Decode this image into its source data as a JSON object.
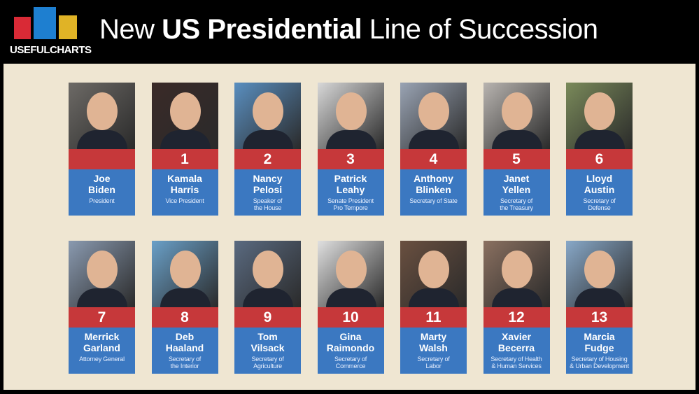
{
  "header": {
    "logo_text": "USEFULCHARTS",
    "logo_colors": [
      "#d92a36",
      "#1e7fd0",
      "#e0b326"
    ],
    "title_pre": "New ",
    "title_bold": "US Presidential",
    "title_post": " Line of Succession"
  },
  "colors": {
    "number_band": "#c6383a",
    "info_band": "#3b78c1",
    "background": "#efe6d2"
  },
  "people": [
    {
      "number": "",
      "first": "Joe",
      "last": "Biden",
      "role1": "President",
      "role2": ""
    },
    {
      "number": "1",
      "first": "Kamala",
      "last": "Harris",
      "role1": "Vice President",
      "role2": ""
    },
    {
      "number": "2",
      "first": "Nancy",
      "last": "Pelosi",
      "role1": "Speaker of",
      "role2": "the House"
    },
    {
      "number": "3",
      "first": "Patrick",
      "last": "Leahy",
      "role1": "Senate President",
      "role2": "Pro Tempore"
    },
    {
      "number": "4",
      "first": "Anthony",
      "last": "Blinken",
      "role1": "Secretary of State",
      "role2": ""
    },
    {
      "number": "5",
      "first": "Janet",
      "last": "Yellen",
      "role1": "Secretary of",
      "role2": "the Treasury"
    },
    {
      "number": "6",
      "first": "Lloyd",
      "last": "Austin",
      "role1": "Secretary of",
      "role2": "Defense"
    },
    {
      "number": "7",
      "first": "Merrick",
      "last": "Garland",
      "role1": "Attorney General",
      "role2": ""
    },
    {
      "number": "8",
      "first": "Deb",
      "last": "Haaland",
      "role1": "Secretary of",
      "role2": "the Interior"
    },
    {
      "number": "9",
      "first": "Tom",
      "last": "Vilsack",
      "role1": "Secretary of",
      "role2": "Agriculture"
    },
    {
      "number": "10",
      "first": "Gina",
      "last": "Raimondo",
      "role1": "Secretary of",
      "role2": "Commerce"
    },
    {
      "number": "11",
      "first": "Marty",
      "last": "Walsh",
      "role1": "Secretary of",
      "role2": "Labor"
    },
    {
      "number": "12",
      "first": "Xavier",
      "last": "Becerra",
      "role1": "Secretary of Health",
      "role2": "& Human Services"
    },
    {
      "number": "13",
      "first": "Marcia",
      "last": "Fudge",
      "role1": "Secretary of Housing",
      "role2": "& Urban Development"
    }
  ]
}
